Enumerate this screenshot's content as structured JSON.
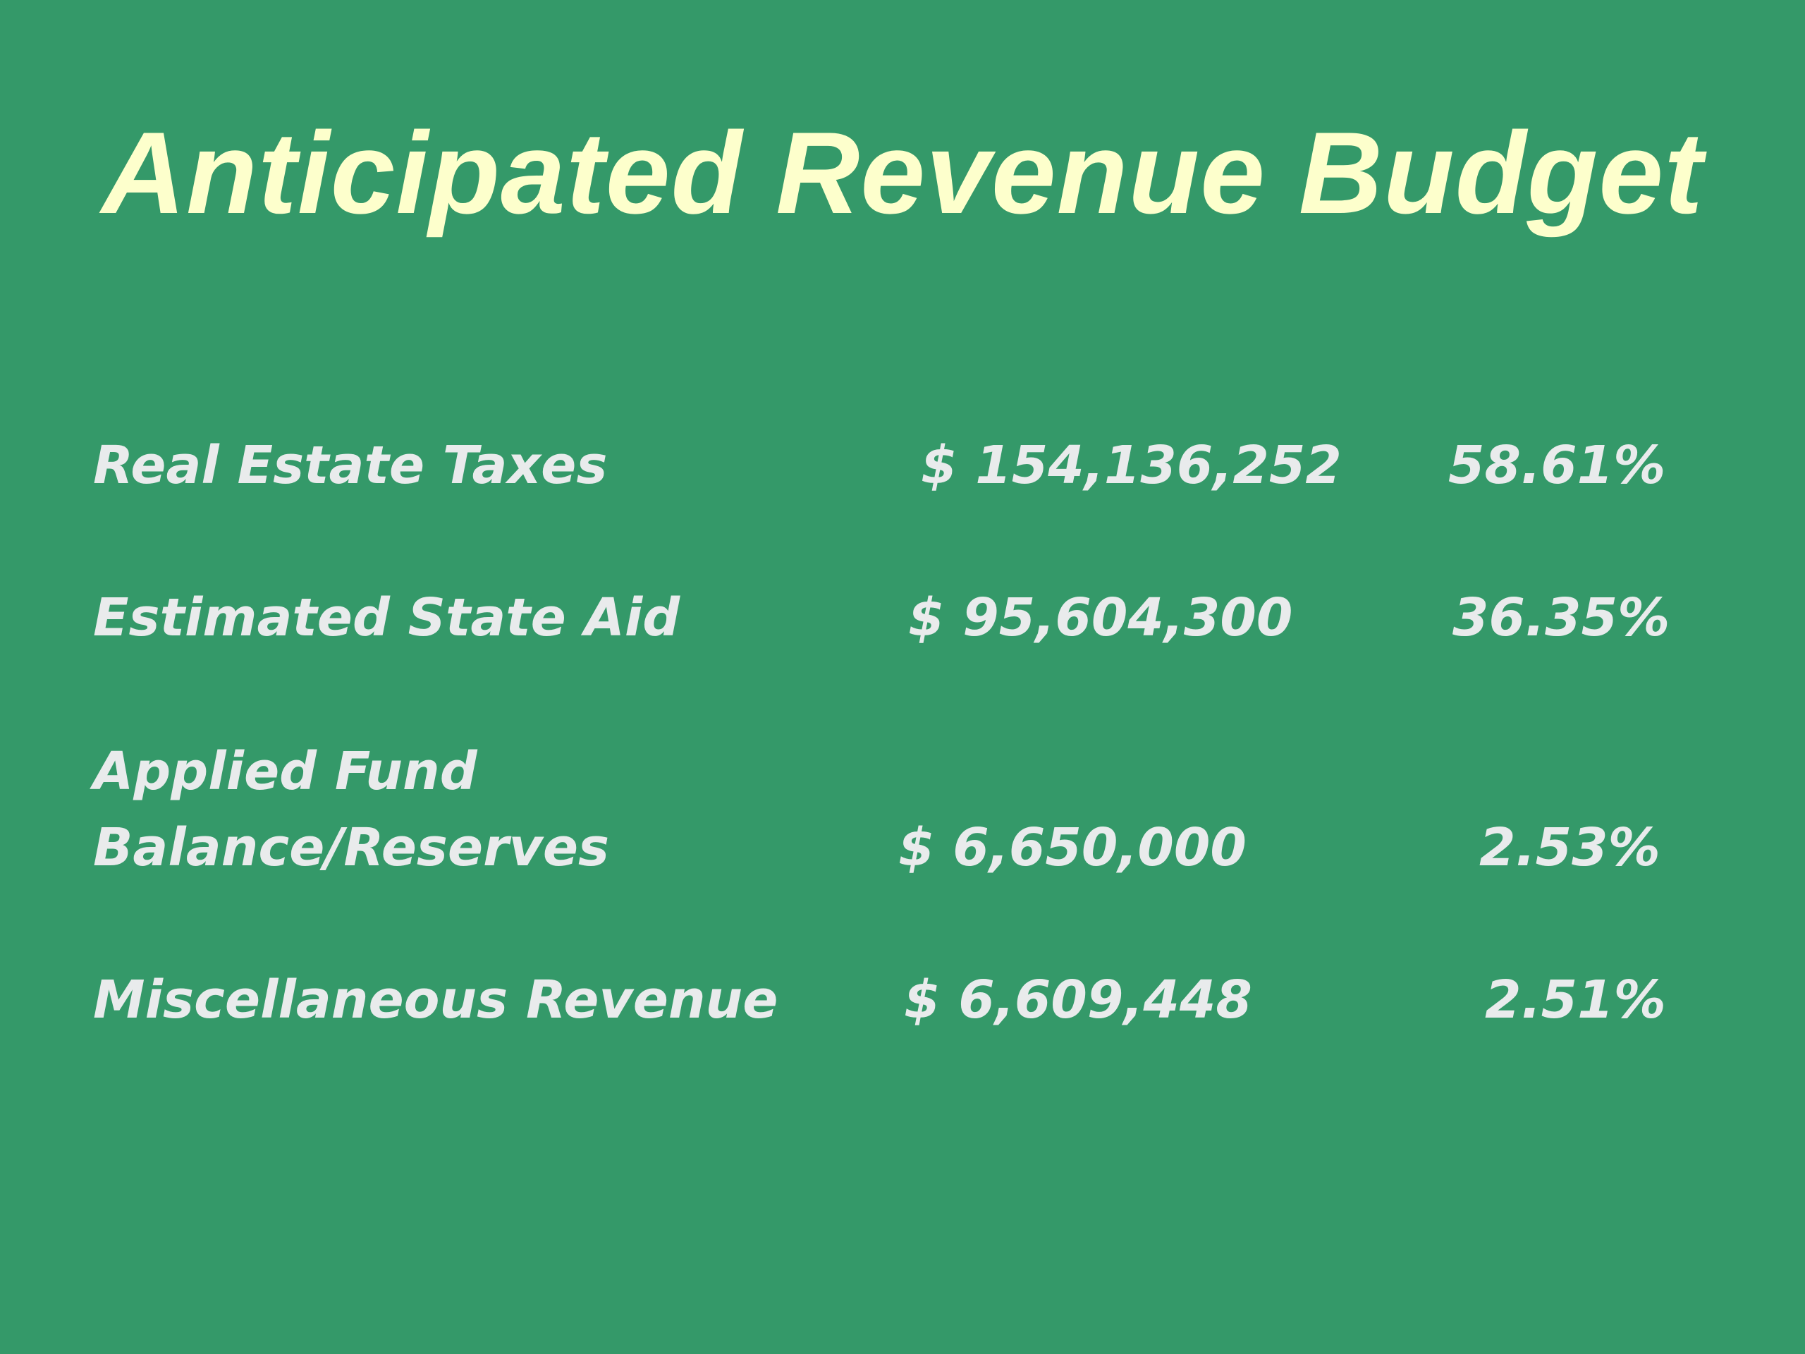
{
  "slide": {
    "title": "Anticipated Revenue Budget",
    "rows": [
      {
        "label_lines": [
          "Real Estate Taxes"
        ],
        "amount": "$ 154,136,252",
        "percent": "58.61%"
      },
      {
        "label_lines": [
          "Estimated State Aid"
        ],
        "amount": "$ 95,604,300",
        "percent": "36.35%"
      },
      {
        "label_lines": [
          "Applied Fund",
          "Balance/Reserves"
        ],
        "amount": "$ 6,650,000",
        "percent": "2.53%"
      },
      {
        "label_lines": [
          "Miscellaneous Revenue"
        ],
        "amount": "$ 6,609,448",
        "percent": "2.51%"
      }
    ],
    "colors": {
      "background": "#349969",
      "title": "#fdffcc",
      "body_text": "#e9ebec"
    }
  }
}
